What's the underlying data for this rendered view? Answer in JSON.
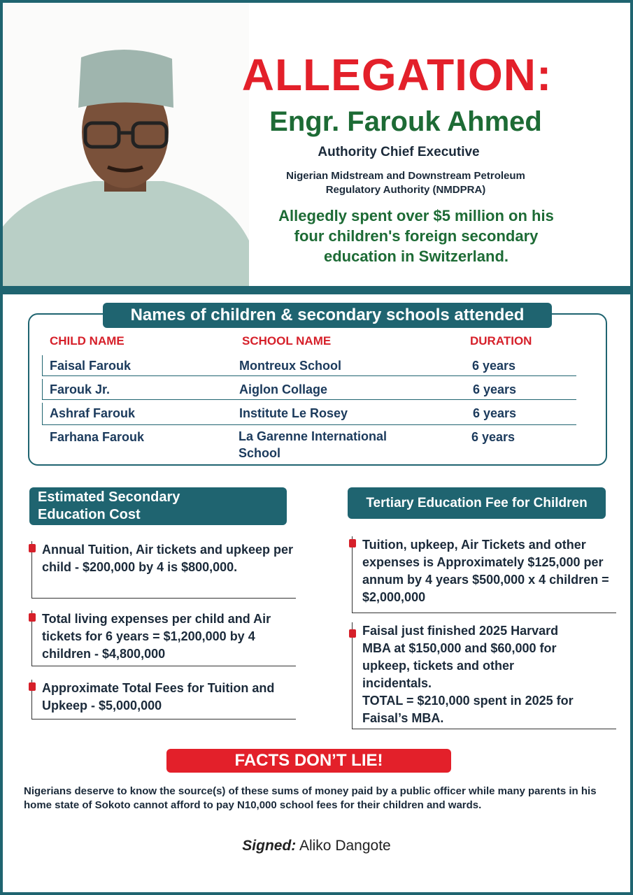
{
  "header": {
    "title": "ALLEGATION:",
    "name": "Engr. Farouk Ahmed",
    "role": "Authority Chief Executive",
    "organization_line1": "Nigerian Midstream and Downstream Petroleum",
    "organization_line2": "Regulatory Authority (NMDPRA)",
    "claim_line1": "Allegedly spent over $5 million on his",
    "claim_line2": "four children's foreign secondary",
    "claim_line3": "education in Switzerland."
  },
  "table": {
    "title": "Names of children & secondary schools attended",
    "columns": [
      "CHILD NAME",
      "SCHOOL NAME",
      "DURATION"
    ],
    "rows": [
      {
        "child": "Faisal Farouk",
        "school": "Montreux School",
        "duration": "6 years"
      },
      {
        "child": "Farouk Jr.",
        "school": "Aiglon Collage",
        "duration": "6 years"
      },
      {
        "child": "Ashraf Farouk",
        "school": "Institute Le Rosey",
        "duration": "6 years"
      },
      {
        "child": "Farhana Farouk",
        "school": "La Garenne International School",
        "duration": "6 years"
      }
    ]
  },
  "secondary": {
    "title": "Estimated Secondary Education Cost",
    "items": [
      "Annual Tuition, Air tickets and upkeep per child - $200,000 by 4 is $800,000.",
      "Total living expenses per child and Air tickets for 6 years = $1,200,000 by 4 children - $4,800,000",
      "Approximate Total Fees for Tuition and Upkeep - $5,000,000"
    ]
  },
  "tertiary": {
    "title": "Tertiary Education Fee for Children",
    "items": [
      "Tuition, upkeep, Air Tickets and other expenses is Approximately $125,000 per annum by 4 years $500,000 x 4 children = $2,000,000",
      "Faisal just finished 2025 Harvard MBA at $150,000 and $60,000 for upkeep, tickets and other incidentals.",
      "TOTAL = $210,000 spent in 2025 for Faisal’s MBA."
    ]
  },
  "footer": {
    "banner": "FACTS DON’T LIE!",
    "statement": "Nigerians deserve to know the source(s) of these sums of money paid by a public officer while many parents in his home state of Sokoto cannot afford to pay N10,000 school fees for their children and wards.",
    "signed_label": "Signed:",
    "signed_name": "Aliko Dangote"
  },
  "colors": {
    "teal": "#1f6470",
    "red": "#e3202a",
    "green": "#1d6b35"
  }
}
